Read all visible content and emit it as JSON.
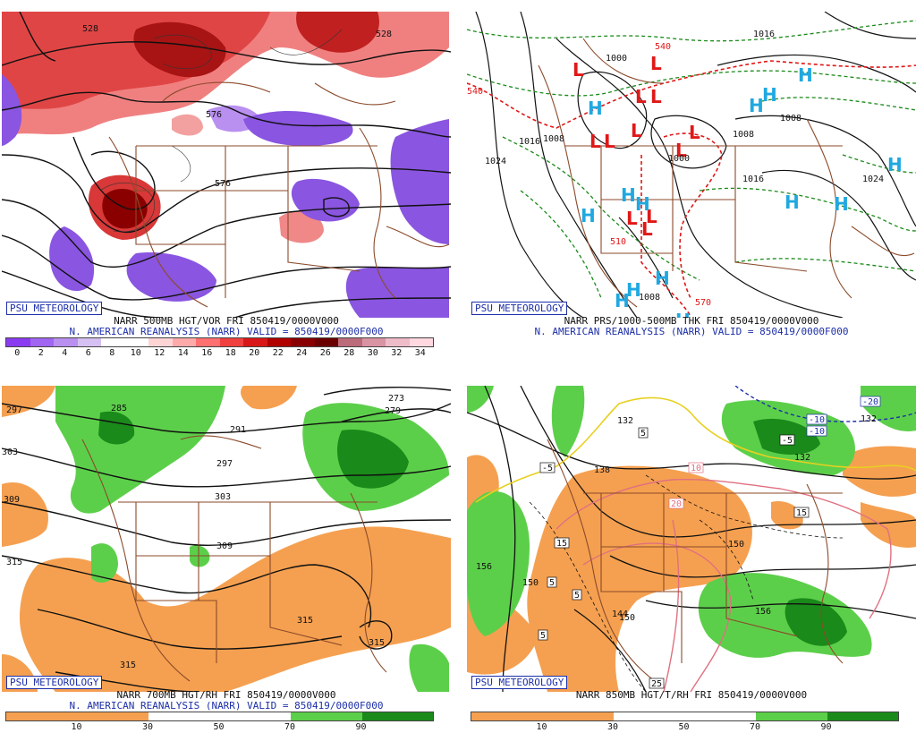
{
  "badge": "PSU METEOROLOGY",
  "panels": [
    {
      "id": "p1",
      "line1": "NARR 500MB HGT/VOR FRI 850419/0000V000",
      "line2": "N. AMERICAN REANALYSIS (NARR) VALID = 850419/0000F000",
      "scale": [
        "0",
        "2",
        "4",
        "6",
        "8",
        "10",
        "12",
        "14",
        "16",
        "18",
        "20",
        "22",
        "24",
        "26",
        "28",
        "30",
        "32",
        "34"
      ],
      "scale_colors": [
        "#8a3cf0",
        "#a066f2",
        "#b990f0",
        "#d4c0f2",
        "#ffffff",
        "#ffffff",
        "#ffd4d4",
        "#ffaaaa",
        "#ff7070",
        "#f04040",
        "#d81818",
        "#b00000",
        "#880000",
        "#6a0000",
        "#bb6b7a",
        "#d994a4",
        "#eebbc8",
        "#ffd8e0"
      ],
      "contours": [
        "528",
        "576",
        "576",
        "528"
      ]
    },
    {
      "id": "p2",
      "line1": "NARR PRS/1000-500MB THK FRI 850419/0000V000",
      "line2": "N. AMERICAN REANALYSIS (NARR) VALID = 850419/0000F000",
      "contours": [
        "1000",
        "1016",
        "1008",
        "1024",
        "1000",
        "1008",
        "1008",
        "1016",
        "1024",
        "1008",
        "1016",
        "540",
        "540",
        "570",
        "510"
      ]
    },
    {
      "id": "p3",
      "line1": "NARR 700MB HGT/RH FRI 850419/0000V000",
      "line2": "N. AMERICAN REANALYSIS (NARR) VALID = 850419/0000F000",
      "scale": [
        "10",
        "30",
        "50",
        "70",
        "90"
      ],
      "scale_colors": [
        "#f5a050",
        "#f5a050",
        "#ffffff",
        "#ffffff",
        "#5ccf4a",
        "#1a8a1a"
      ],
      "contours": [
        "297",
        "285",
        "273",
        "279",
        "291",
        "297",
        "303",
        "303",
        "309",
        "309",
        "315",
        "315",
        "315",
        "315"
      ]
    },
    {
      "id": "p4",
      "line1": "NARR 850MB HGT/T/RH FRI 850419/0000V000",
      "line2": "",
      "scale": [
        "10",
        "30",
        "50",
        "70",
        "90"
      ],
      "scale_colors": [
        "#f5a050",
        "#f5a050",
        "#ffffff",
        "#ffffff",
        "#5ccf4a",
        "#1a8a1a"
      ],
      "contours": [
        "132",
        "138",
        "132",
        "132",
        "156",
        "150",
        "150",
        "150",
        "156",
        "144",
        "-5",
        "-5",
        "-10",
        "5",
        "5",
        "10",
        "15",
        "15",
        "5",
        "5",
        "20",
        "25",
        "-10",
        "-20"
      ]
    }
  ]
}
